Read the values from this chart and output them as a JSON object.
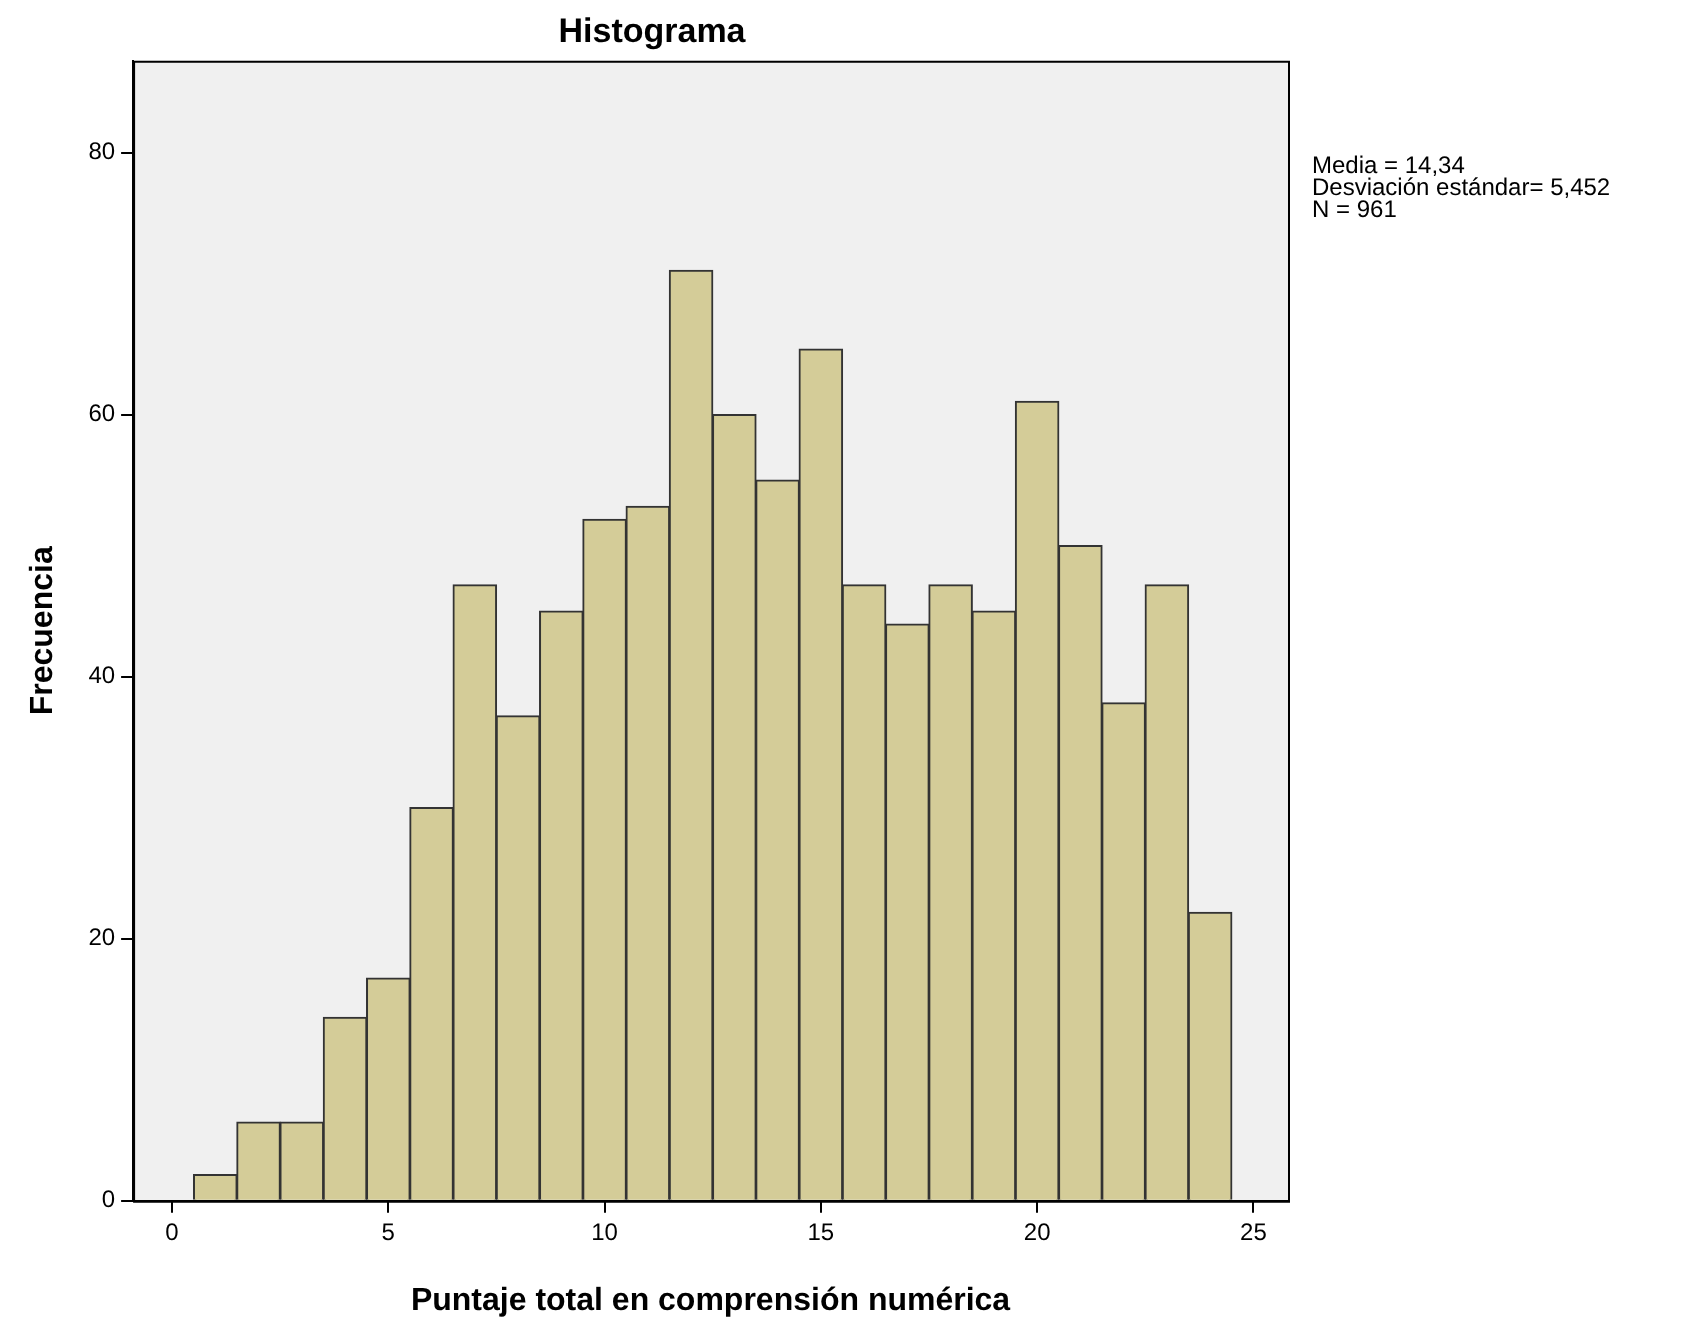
{
  "chart_data": {
    "type": "histogram",
    "title": "Histograma",
    "xlabel": "Puntaje total en comprensión numérica",
    "ylabel": "Frecuencia",
    "bins": [
      0.5,
      1.5,
      2.5,
      3.5,
      4.5,
      5.5,
      6.5,
      7.5,
      8.5,
      9.5,
      10.5,
      11.5,
      12.5,
      13.5,
      14.5,
      15.5,
      16.5,
      17.5,
      18.5,
      19.5,
      20.5,
      21.5,
      22.5,
      23.5,
      24.5
    ],
    "values": [
      2,
      6,
      6,
      14,
      17,
      30,
      47,
      37,
      45,
      52,
      53,
      71,
      60,
      55,
      65,
      47,
      44,
      47,
      45,
      61,
      50,
      38,
      47,
      22
    ],
    "color": "#d4cc98",
    "xlim": [
      -0.9,
      25.8
    ],
    "xticks": [
      0,
      5,
      10,
      15,
      20,
      25
    ],
    "ylim": [
      0,
      87
    ],
    "yticks": [
      0,
      20,
      40,
      60,
      80
    ],
    "grid": false,
    "legend": false,
    "annotations": [
      "Media = 14,34",
      "Desviación estándar= 5,452",
      "N = 961"
    ]
  }
}
